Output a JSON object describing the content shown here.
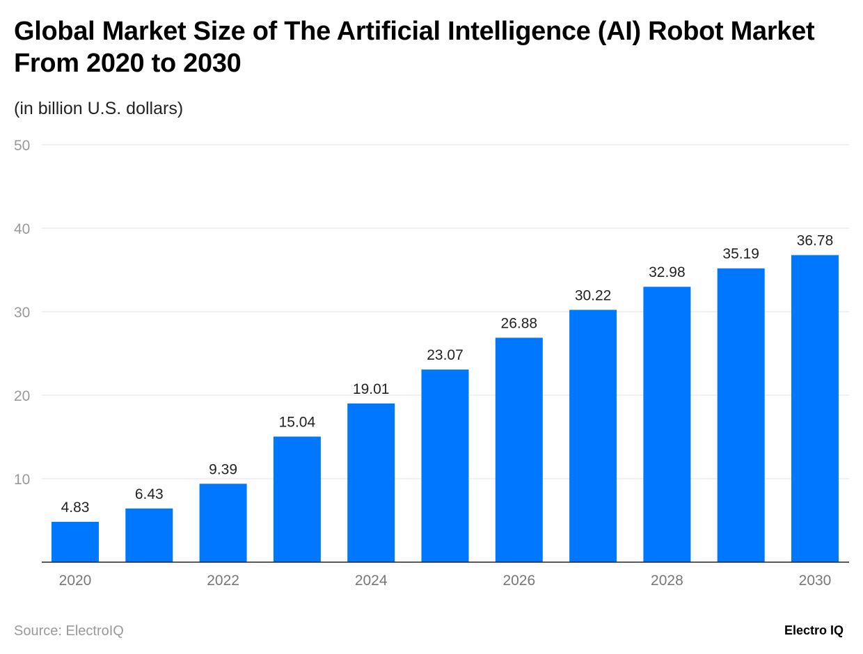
{
  "chart_data": {
    "type": "bar",
    "title": "Global Market Size of The Artificial Intelligence (AI) Robot Market From 2020 to 2030",
    "subtitle": "(in billion U.S. dollars)",
    "categories": [
      "2020",
      "2021",
      "2022",
      "2023",
      "2024",
      "2025",
      "2026",
      "2027",
      "2028",
      "2029",
      "2030"
    ],
    "x_tick_labels": [
      "2020",
      "2022",
      "2024",
      "2026",
      "2028",
      "2030"
    ],
    "values": [
      4.83,
      6.43,
      9.39,
      15.04,
      19.01,
      23.07,
      26.88,
      30.22,
      32.98,
      35.19,
      36.78
    ],
    "value_labels": [
      "4.83",
      "6.43",
      "9.39",
      "15.04",
      "19.01",
      "23.07",
      "26.88",
      "30.22",
      "32.98",
      "35.19",
      "36.78"
    ],
    "ylim": [
      0,
      50
    ],
    "y_ticks": [
      10,
      20,
      30,
      40,
      50
    ],
    "grid": true,
    "bar_color": "#0077ff",
    "xlabel": "",
    "ylabel": ""
  },
  "footer": {
    "source": "Source: ElectroIQ",
    "logo": "Electro IQ"
  }
}
